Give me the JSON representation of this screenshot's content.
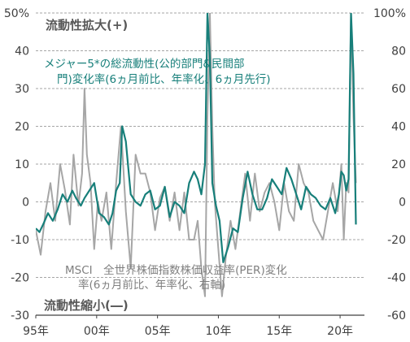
{
  "chart_data": {
    "type": "line",
    "annotations": {
      "top": "流動性拡大(+)",
      "bottom": "流動性縮小(―)",
      "series1_line1": "メジャー5*の総流動性(公的部門&民間部",
      "series1_line2": "門)変化率(6ヵ月前比、年率化、6ヵ月先行)",
      "series2_line1": "MSCI　全世界株価指数株価収益率(PER)変化",
      "series2_line2": "率(6ヵ月前比、年率化、右軸)"
    },
    "x_ticks": [
      "95年",
      "00年",
      "05年",
      "10年",
      "15年",
      "20年"
    ],
    "x_tick_values": [
      1995,
      2000,
      2005,
      2010,
      2015,
      2020
    ],
    "xlim": [
      1995,
      2022
    ],
    "y_left": {
      "ticks": [
        "50%",
        "40",
        "30",
        "20",
        "10",
        "0",
        "-10",
        "-20",
        "-30"
      ],
      "values": [
        50,
        40,
        30,
        20,
        10,
        0,
        -10,
        -20,
        -30
      ],
      "lim": [
        -30,
        50
      ]
    },
    "y_right": {
      "ticks": [
        "100%",
        "80",
        "60",
        "40",
        "20",
        "0",
        "-20",
        "-40",
        "-60"
      ],
      "values": [
        100,
        80,
        60,
        40,
        20,
        0,
        -20,
        -40,
        -60
      ],
      "lim": [
        -60,
        100
      ]
    },
    "grid": "horizontal-dashed",
    "colors": {
      "series1": "#177f7a",
      "series2": "#a6a6a6",
      "grid": "#a6a6a6",
      "axis": "#404040"
    },
    "series": [
      {
        "axis": "left",
        "x": [
          1995.0,
          1995.3,
          1995.6,
          1996.0,
          1996.4,
          1996.8,
          1997.2,
          1997.6,
          1998.0,
          1998.3,
          1998.7,
          1999.0,
          1999.4,
          1999.8,
          2000.2,
          2000.6,
          2001.0,
          2001.3,
          2001.6,
          2001.9,
          2002.1,
          2002.4,
          2002.8,
          2003.2,
          2003.6,
          2004.0,
          2004.4,
          2004.8,
          2005.2,
          2005.6,
          2006.0,
          2006.4,
          2006.8,
          2007.2,
          2007.6,
          2008.0,
          2008.3,
          2008.6,
          2008.9,
          2009.1,
          2009.3,
          2009.5,
          2009.8,
          2010.1,
          2010.4,
          2010.8,
          2011.2,
          2011.6,
          2012.0,
          2012.4,
          2012.8,
          2013.2,
          2013.6,
          2014.0,
          2014.4,
          2014.8,
          2015.2,
          2015.6,
          2016.0,
          2016.4,
          2016.8,
          2017.2,
          2017.6,
          2018.0,
          2018.4,
          2018.8,
          2019.2,
          2019.6,
          2019.9,
          2020.1,
          2020.3,
          2020.5,
          2020.7,
          2020.9,
          2021.1,
          2021.3
        ],
        "y": [
          -7,
          -8,
          -6,
          -3,
          -5,
          -2,
          2,
          0,
          3,
          1,
          -1,
          1,
          3,
          5,
          -3,
          -4,
          -6,
          -3,
          3,
          5,
          20,
          16,
          2,
          0,
          -1,
          2,
          3,
          -2,
          -1,
          4,
          -4,
          0,
          -1,
          -3,
          5,
          8,
          6,
          2,
          10,
          50,
          38,
          5,
          -1,
          -5,
          -16,
          -12,
          -7,
          -8,
          1,
          8,
          2,
          -2,
          -2,
          1,
          6,
          4,
          2,
          9,
          6,
          2,
          -2,
          4,
          2,
          1,
          -1,
          -2,
          1,
          -3,
          2,
          8,
          7,
          3,
          6,
          50,
          34,
          -6
        ]
      },
      {
        "axis": "right",
        "x": [
          1995.0,
          1995.4,
          1995.8,
          1996.2,
          1996.6,
          1997.0,
          1997.4,
          1997.8,
          1998.1,
          1998.5,
          1998.8,
          1999.0,
          1999.2,
          1999.5,
          1999.8,
          2000.1,
          2000.4,
          2000.8,
          2001.2,
          2001.6,
          2002.0,
          2002.4,
          2002.8,
          2003.2,
          2003.6,
          2004.0,
          2004.4,
          2004.8,
          2005.2,
          2005.6,
          2006.0,
          2006.4,
          2006.8,
          2007.2,
          2007.6,
          2008.0,
          2008.3,
          2008.6,
          2008.9,
          2009.1,
          2009.3,
          2009.5,
          2009.7,
          2010.0,
          2010.3,
          2010.6,
          2011.0,
          2011.4,
          2011.8,
          2012.2,
          2012.6,
          2013.0,
          2013.4,
          2013.8,
          2014.2,
          2014.6,
          2015.0,
          2015.4,
          2015.8,
          2016.2,
          2016.6,
          2017.0,
          2017.4,
          2017.8,
          2018.2,
          2018.6,
          2019.0,
          2019.4,
          2019.8,
          2020.1,
          2020.3,
          2020.5,
          2020.7,
          2020.9,
          2021.1,
          2021.3
        ],
        "y": [
          -15,
          -28,
          -5,
          10,
          -10,
          20,
          6,
          -12,
          25,
          -2,
          15,
          60,
          25,
          10,
          -25,
          0,
          -10,
          5,
          -25,
          10,
          40,
          -5,
          -35,
          25,
          15,
          15,
          5,
          -15,
          2,
          8,
          -10,
          5,
          -15,
          5,
          -20,
          -20,
          -10,
          -35,
          -50,
          45,
          100,
          40,
          0,
          -25,
          -50,
          -30,
          -10,
          -25,
          -5,
          15,
          -10,
          15,
          -5,
          5,
          10,
          0,
          -15,
          10,
          -5,
          -10,
          20,
          10,
          5,
          -10,
          -15,
          -20,
          -5,
          10,
          -5,
          20,
          -20,
          10,
          5,
          100,
          45,
          10
        ]
      }
    ]
  }
}
